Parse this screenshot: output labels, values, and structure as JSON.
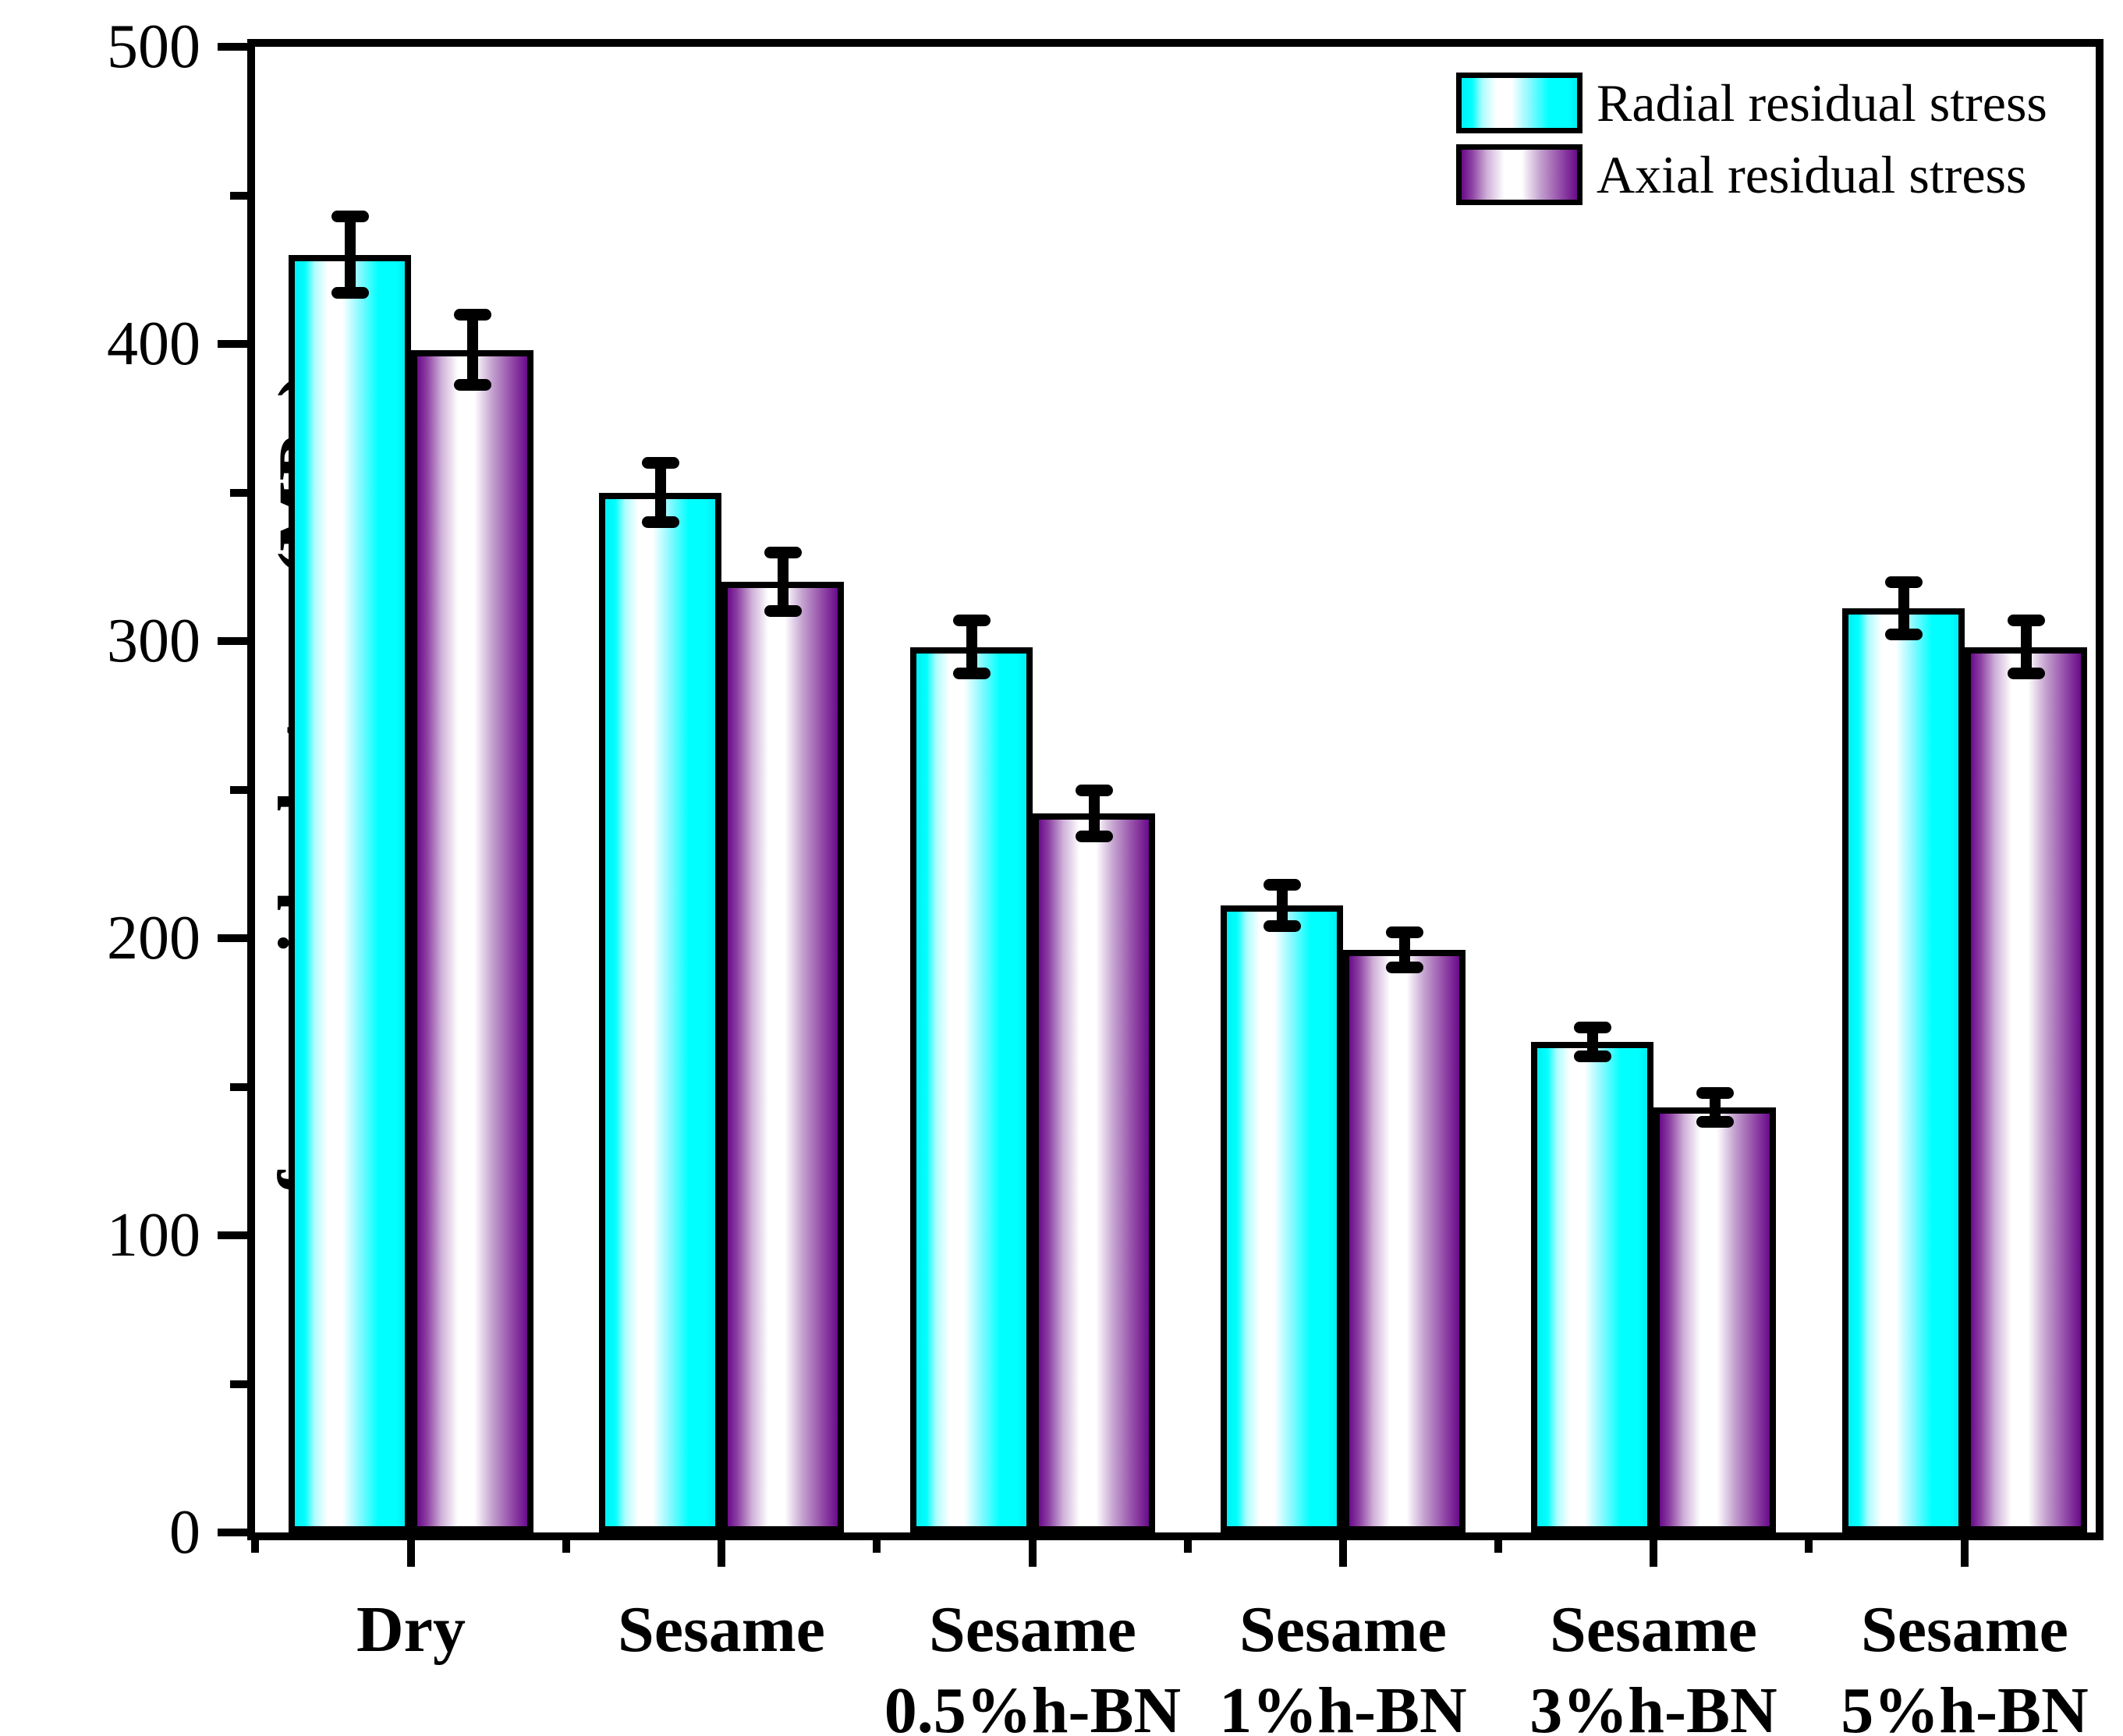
{
  "figure": {
    "background": "#ffffff",
    "text_color": "#000000"
  },
  "chart_data": {
    "type": "bar",
    "title": "",
    "xlabel": "",
    "ylabel": "surface residual stress (MPa)",
    "ylim": [
      0,
      500
    ],
    "ytick_interval": 100,
    "ytick_minor_interval": 50,
    "ytick_labels": [
      "0",
      "100",
      "200",
      "300",
      "400",
      "500"
    ],
    "grid": false,
    "frame": true,
    "legend_position": "top-right",
    "categories": [
      {
        "label": "Dry",
        "sublabel": ""
      },
      {
        "label": "Sesame",
        "sublabel": ""
      },
      {
        "label": "Sesame",
        "sublabel": "0.5%h-BN"
      },
      {
        "label": "Sesame",
        "sublabel": "1%h-BN"
      },
      {
        "label": "Sesame",
        "sublabel": "3%h-BN"
      },
      {
        "label": "Sesame",
        "sublabel": "5%h-BN"
      }
    ],
    "series": [
      {
        "name": "Radial residual stress",
        "color": "#00FFFF",
        "values": [
          430,
          350,
          298,
          211,
          165,
          311
        ],
        "errors": [
          13,
          10,
          9,
          7,
          5,
          9
        ]
      },
      {
        "name": "Axial residual stress",
        "color": "#730C92",
        "values": [
          398,
          320,
          242,
          196,
          143,
          298
        ],
        "errors": [
          12,
          10,
          8,
          6,
          5,
          9
        ]
      }
    ],
    "error_bar_color": "#000000",
    "axis_color": "#000000"
  }
}
